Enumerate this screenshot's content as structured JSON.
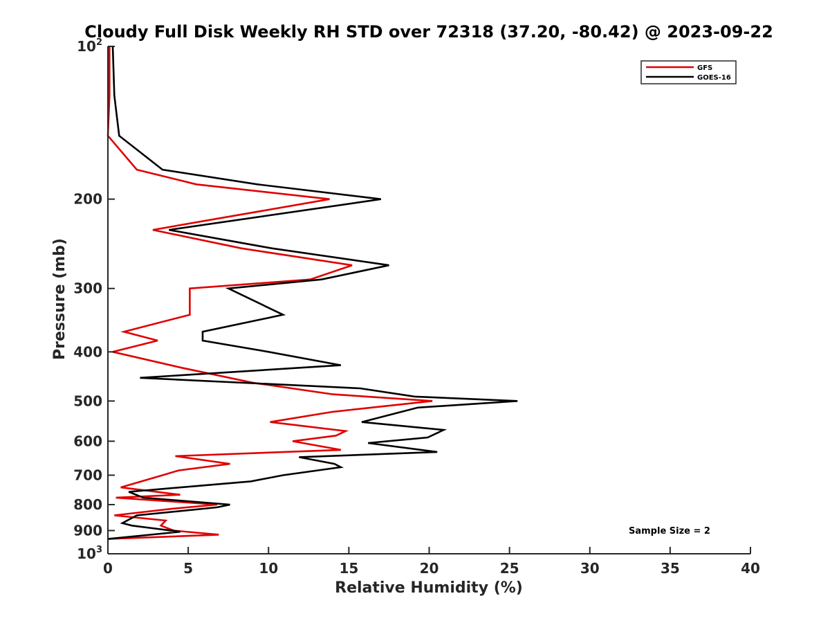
{
  "chart_data": {
    "type": "line",
    "title": "Cloudy Full Disk Weekly RH STD over 72318 (37.20, -80.42) @ 2023-09-22",
    "xlabel": "Relative Humidity (%)",
    "ylabel": "Pressure (mb)",
    "xlim": [
      0,
      40
    ],
    "ylim": [
      100,
      1000
    ],
    "yscale": "log",
    "yaxis_reversed": true,
    "x_ticks": [
      "0",
      "5",
      "10",
      "15",
      "20",
      "25",
      "30",
      "35",
      "40"
    ],
    "y_ticks": [
      {
        "base": "10",
        "exp": "2"
      },
      {
        "text": "200"
      },
      {
        "text": "300"
      },
      {
        "text": "400"
      },
      {
        "text": "500"
      },
      {
        "text": "600"
      },
      {
        "text": "700"
      },
      {
        "text": "800"
      },
      {
        "text": "900"
      },
      {
        "base": "10",
        "exp": "3"
      }
    ],
    "legend_position": "top-right",
    "annotation": "Sample Size = 2",
    "series": [
      {
        "name": "GFS",
        "color": "#e00000",
        "points": [
          [
            0.1,
            100
          ],
          [
            0.1,
            125
          ],
          [
            0.0,
            150
          ],
          [
            1.8,
            175
          ],
          [
            5.5,
            187
          ],
          [
            13.8,
            200
          ],
          [
            2.8,
            230
          ],
          [
            8.3,
            250
          ],
          [
            15.2,
            270
          ],
          [
            12.6,
            288
          ],
          [
            5.1,
            300
          ],
          [
            5.1,
            338
          ],
          [
            1.0,
            365
          ],
          [
            3.1,
            380
          ],
          [
            0.3,
            400
          ],
          [
            4.6,
            430
          ],
          [
            9.0,
            460
          ],
          [
            14.0,
            485
          ],
          [
            20.2,
            500
          ],
          [
            14.0,
            525
          ],
          [
            10.1,
            550
          ],
          [
            14.8,
            573
          ],
          [
            14.2,
            585
          ],
          [
            11.5,
            600
          ],
          [
            14.5,
            624
          ],
          [
            4.2,
            642
          ],
          [
            7.6,
            665
          ],
          [
            4.4,
            685
          ],
          [
            3.4,
            700
          ],
          [
            0.8,
            740
          ],
          [
            4.5,
            765
          ],
          [
            0.5,
            775
          ],
          [
            6.8,
            800
          ],
          [
            4.0,
            815
          ],
          [
            0.4,
            840
          ],
          [
            3.6,
            860
          ],
          [
            3.3,
            880
          ],
          [
            4.1,
            900
          ],
          [
            6.9,
            917
          ],
          [
            0.0,
            935
          ]
        ]
      },
      {
        "name": "GOES-16",
        "color": "#000000",
        "points": [
          [
            0.3,
            100
          ],
          [
            0.4,
            125
          ],
          [
            0.7,
            150
          ],
          [
            3.4,
            175
          ],
          [
            9.3,
            187
          ],
          [
            17.0,
            200
          ],
          [
            3.8,
            230
          ],
          [
            10.2,
            250
          ],
          [
            17.5,
            270
          ],
          [
            13.3,
            288
          ],
          [
            7.5,
            300
          ],
          [
            10.9,
            338
          ],
          [
            5.9,
            365
          ],
          [
            5.9,
            380
          ],
          [
            10.0,
            400
          ],
          [
            14.5,
            425
          ],
          [
            2.0,
            450
          ],
          [
            15.7,
            472
          ],
          [
            19.1,
            490
          ],
          [
            25.5,
            500
          ],
          [
            19.3,
            515
          ],
          [
            15.8,
            550
          ],
          [
            20.9,
            570
          ],
          [
            19.9,
            590
          ],
          [
            16.2,
            605
          ],
          [
            20.5,
            630
          ],
          [
            11.9,
            645
          ],
          [
            14.1,
            665
          ],
          [
            14.5,
            675
          ],
          [
            10.9,
            700
          ],
          [
            8.9,
            720
          ],
          [
            1.3,
            755
          ],
          [
            2.2,
            775
          ],
          [
            7.6,
            800
          ],
          [
            6.8,
            810
          ],
          [
            1.8,
            840
          ],
          [
            0.9,
            870
          ],
          [
            1.5,
            880
          ],
          [
            4.5,
            905
          ],
          [
            0.0,
            935
          ]
        ]
      }
    ]
  }
}
